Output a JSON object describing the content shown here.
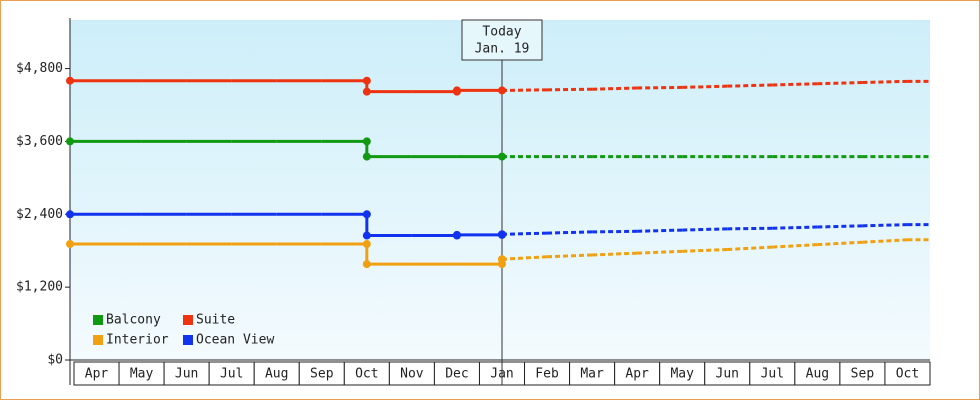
{
  "chart_data": {
    "type": "step-line",
    "categories": [
      "Apr",
      "May",
      "Jun",
      "Jul",
      "Aug",
      "Sep",
      "Oct",
      "Nov",
      "Dec",
      "Jan",
      "Feb",
      "Mar",
      "Apr",
      "May",
      "Jun",
      "Jul",
      "Aug",
      "Sep",
      "Oct"
    ],
    "series": [
      {
        "name": "Balcony",
        "color": "#119911",
        "values": [
          3600,
          3600,
          3600,
          3600,
          3600,
          3600,
          3350,
          3350,
          3350,
          3350,
          3350,
          3350,
          3350,
          3350,
          3350,
          3350,
          3350,
          3350,
          3350
        ]
      },
      {
        "name": "Suite",
        "color": "#ee3311",
        "values": [
          4600,
          4600,
          4600,
          4600,
          4600,
          4600,
          4420,
          4420,
          4440,
          4440,
          4450,
          4460,
          4480,
          4490,
          4510,
          4530,
          4550,
          4570,
          4590
        ]
      },
      {
        "name": "Interior",
        "color": "#f0a010",
        "values": [
          1910,
          1910,
          1910,
          1910,
          1910,
          1910,
          1580,
          1580,
          1580,
          1660,
          1700,
          1730,
          1760,
          1790,
          1820,
          1860,
          1900,
          1940,
          1980
        ]
      },
      {
        "name": "Ocean View",
        "color": "#1133ee",
        "values": [
          2400,
          2400,
          2400,
          2400,
          2400,
          2400,
          2050,
          2050,
          2060,
          2070,
          2090,
          2110,
          2120,
          2140,
          2160,
          2170,
          2190,
          2210,
          2230
        ]
      }
    ],
    "ylim": [
      0,
      5600
    ],
    "yticks": [
      {
        "value": 0,
        "label": "$0"
      },
      {
        "value": 1200,
        "label": "$1,200"
      },
      {
        "value": 2400,
        "label": "$2,400"
      },
      {
        "value": 3600,
        "label": "$3,600"
      },
      {
        "value": 4800,
        "label": "$4,800"
      }
    ],
    "annotation": {
      "lines": [
        "Today",
        "Jan. 19"
      ],
      "category": "Jan"
    },
    "forecast_after_annotation": true,
    "legend": "lower left"
  }
}
